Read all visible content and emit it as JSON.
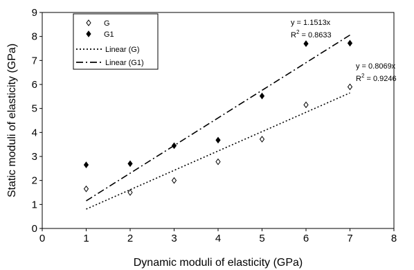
{
  "chart_data": {
    "type": "scatter",
    "xlabel": "Dynamic moduli of elasticity (GPa)",
    "ylabel": "Static moduli of elasticity (GPa)",
    "xlim": [
      0,
      8
    ],
    "ylim": [
      0,
      9
    ],
    "xticks": [
      "0",
      "1",
      "2",
      "3",
      "4",
      "5",
      "6",
      "7",
      "8"
    ],
    "yticks": [
      "0",
      "1",
      "2",
      "3",
      "4",
      "5",
      "6",
      "7",
      "8",
      "9"
    ],
    "grid": false,
    "legend_position": "top-left",
    "series": [
      {
        "name": "G",
        "marker": "open-diamond",
        "color": "#000000",
        "points": [
          {
            "x": 1,
            "y": 1.65
          },
          {
            "x": 2,
            "y": 1.5
          },
          {
            "x": 3,
            "y": 2.0
          },
          {
            "x": 4,
            "y": 2.78
          },
          {
            "x": 5,
            "y": 3.72
          },
          {
            "x": 6,
            "y": 5.15
          },
          {
            "x": 7,
            "y": 5.9
          }
        ]
      },
      {
        "name": "G1",
        "marker": "filled-diamond",
        "color": "#000000",
        "points": [
          {
            "x": 1,
            "y": 2.65
          },
          {
            "x": 2,
            "y": 2.7
          },
          {
            "x": 3,
            "y": 3.45
          },
          {
            "x": 4,
            "y": 3.68
          },
          {
            "x": 5,
            "y": 5.52
          },
          {
            "x": 6,
            "y": 7.7
          },
          {
            "x": 7,
            "y": 7.72
          }
        ]
      }
    ],
    "trendlines": [
      {
        "name": "Linear (G)",
        "style": "dotted",
        "slope": 0.8069,
        "x_range": [
          1,
          7
        ],
        "equation": "y = 0.8069x",
        "r2_prefix": "R",
        "r2_sup": "2",
        "r2_value": " = 0.9246"
      },
      {
        "name": "Linear (G1)",
        "style": "dash-dot",
        "slope": 1.1513,
        "x_range": [
          1,
          7
        ],
        "equation": "y = 1.1513x",
        "r2_prefix": "R",
        "r2_sup": "2",
        "r2_value": " = 0.8633"
      }
    ]
  }
}
